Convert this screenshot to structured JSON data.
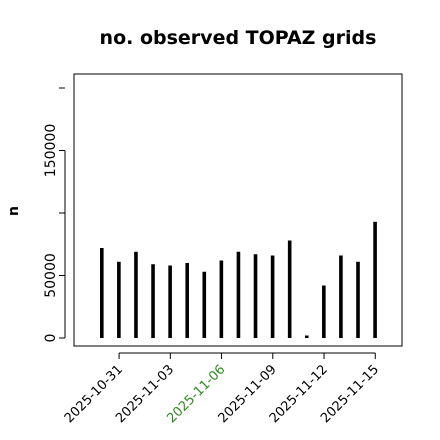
{
  "chart_data": {
    "type": "bar",
    "title": "no. observed TOPAZ grids",
    "xlabel": "",
    "ylabel": "n",
    "ylim": [
      0,
      210000
    ],
    "grid": false,
    "legend": "none",
    "bar_color": "#000000",
    "y_ticks": [
      {
        "value": 0,
        "label": "0"
      },
      {
        "value": 50000,
        "label": "50000"
      },
      {
        "value": 150000,
        "label": "150000"
      }
    ],
    "x_ticks": [
      {
        "label": "2025-10-31",
        "color": "#000000"
      },
      {
        "label": "2025-11-03",
        "color": "#000000"
      },
      {
        "label": "2025-11-06",
        "color": "#2e8b22"
      },
      {
        "label": "2025-11-09",
        "color": "#000000"
      },
      {
        "label": "2025-11-12",
        "color": "#000000"
      },
      {
        "label": "2025-11-15",
        "color": "#000000"
      }
    ],
    "categories": [
      "2025-10-30",
      "2025-10-31",
      "2025-11-01",
      "2025-11-02",
      "2025-11-03",
      "2025-11-04",
      "2025-11-05",
      "2025-11-06",
      "2025-11-07",
      "2025-11-08",
      "2025-11-09",
      "2025-11-10",
      "2025-11-11",
      "2025-11-12",
      "2025-11-13",
      "2025-11-14",
      "2025-11-15"
    ],
    "values": [
      72000,
      61000,
      69000,
      59000,
      58000,
      60000,
      53000,
      62000,
      69000,
      67000,
      66000,
      78000,
      1000,
      42000,
      66000,
      61000,
      93000
    ]
  }
}
